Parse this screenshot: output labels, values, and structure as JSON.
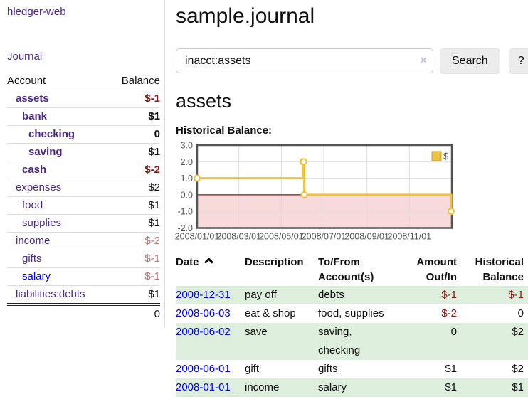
{
  "colors": {
    "accent_purple": "#4c2a85",
    "link_blue": "#0000ee",
    "negative_strong": "#8f1511",
    "negative_light": "#bc6f6f",
    "row_stripe_green": "#ddeedd",
    "series_yellow": "#edc240"
  },
  "sidebar": {
    "app_title": "hledger-web",
    "journal_link": "Journal",
    "accounts": {
      "col_account": "Account",
      "col_balance": "Balance",
      "rows": [
        {
          "name": "assets",
          "depth": 1,
          "bold": true,
          "balance": "$-1",
          "bal_class": "neg-strong"
        },
        {
          "name": "bank",
          "depth": 2,
          "bold": true,
          "balance": "$1"
        },
        {
          "name": "checking",
          "depth": 3,
          "bold": true,
          "balance": "0"
        },
        {
          "name": "saving",
          "depth": 3,
          "bold": true,
          "balance": "$1"
        },
        {
          "name": "cash",
          "depth": 2,
          "bold": true,
          "balance": "$-2",
          "bal_class": "neg-strong"
        },
        {
          "name": "expenses",
          "depth": 1,
          "bold": false,
          "balance": "$2"
        },
        {
          "name": "food",
          "depth": 2,
          "bold": false,
          "balance": "$1"
        },
        {
          "name": "supplies",
          "depth": 2,
          "bold": false,
          "balance": "$1"
        },
        {
          "name": "income",
          "depth": 1,
          "bold": false,
          "balance": "$-2",
          "bal_class": "neg-light"
        },
        {
          "name": "gifts",
          "depth": 2,
          "bold": false,
          "balance": "$-1",
          "bal_class": "neg-light"
        },
        {
          "name": "salary",
          "depth": 2,
          "bold": false,
          "balance": "$-1",
          "bal_class": "neg-light",
          "blue": true
        },
        {
          "name": "liabilities:debts",
          "depth": 1,
          "bold": false,
          "balance": "$1"
        }
      ],
      "total": "0"
    }
  },
  "header": {
    "title": "sample.journal"
  },
  "search": {
    "value": "inacct:assets",
    "clear_icon": "×",
    "search_button": "Search",
    "help_button": "?"
  },
  "account_section": {
    "heading": "assets",
    "chart_title": "Historical Balance:"
  },
  "chart_data": {
    "type": "line",
    "step": true,
    "title": "Historical Balance:",
    "series": [
      {
        "name": "$",
        "color": "#edc240",
        "points": [
          [
            "2008-01-01",
            1
          ],
          [
            "2008-06-01",
            2
          ],
          [
            "2008-06-02",
            2
          ],
          [
            "2008-06-03",
            0
          ],
          [
            "2008-12-31",
            -1
          ]
        ]
      }
    ],
    "x_range": [
      "2008-01-01",
      "2009-01-01"
    ],
    "x_ticks": [
      [
        "2008-01-01",
        "2008/01/01"
      ],
      [
        "2008-03-01",
        "2008/03/01"
      ],
      [
        "2008-05-01",
        "2008/05/01"
      ],
      [
        "2008-07-01",
        "2008/07/01"
      ],
      [
        "2008-09-01",
        "2008/09/01"
      ],
      [
        "2008-11-01",
        "2008/11/01"
      ]
    ],
    "y_ticks": [
      "3.0",
      "2.0",
      "1.0",
      "0.0",
      "-1.0",
      "-2.0"
    ],
    "ylim": [
      -2,
      3
    ],
    "grid": true,
    "legend": {
      "label": "$",
      "position": "top-right"
    },
    "negative_region_fill": "#f9dada",
    "zero_line_color": "#871010",
    "plot_border_color": "#545454",
    "grid_color": "#dcdcdc",
    "axis_text_color": "#545454"
  },
  "register": {
    "headers": {
      "date": "Date",
      "sort_icon": "sort-ascending",
      "description": "Description",
      "accounts": "To/From Account(s)",
      "amount": "Amount Out/In",
      "balance": "Historical Balance"
    },
    "rows": [
      {
        "date": "2008-12-31",
        "description": "pay off",
        "accounts": "debts",
        "amount": "$-1",
        "balance": "$-1",
        "amount_neg": true,
        "balance_neg": true
      },
      {
        "date": "2008-06-03",
        "description": "eat & shop",
        "accounts": "food, supplies",
        "amount": "$-2",
        "balance": "0",
        "amount_neg": true,
        "balance_neg": false
      },
      {
        "date": "2008-06-02",
        "description": "save",
        "accounts": "saving, checking",
        "amount": "0",
        "balance": "$2",
        "amount_neg": false,
        "balance_neg": false
      },
      {
        "date": "2008-06-01",
        "description": "gift",
        "accounts": "gifts",
        "amount": "$1",
        "balance": "$2",
        "amount_neg": false,
        "balance_neg": false
      },
      {
        "date": "2008-01-01",
        "description": "income",
        "accounts": "salary",
        "amount": "$1",
        "balance": "$1",
        "amount_neg": false,
        "balance_neg": false
      }
    ]
  }
}
